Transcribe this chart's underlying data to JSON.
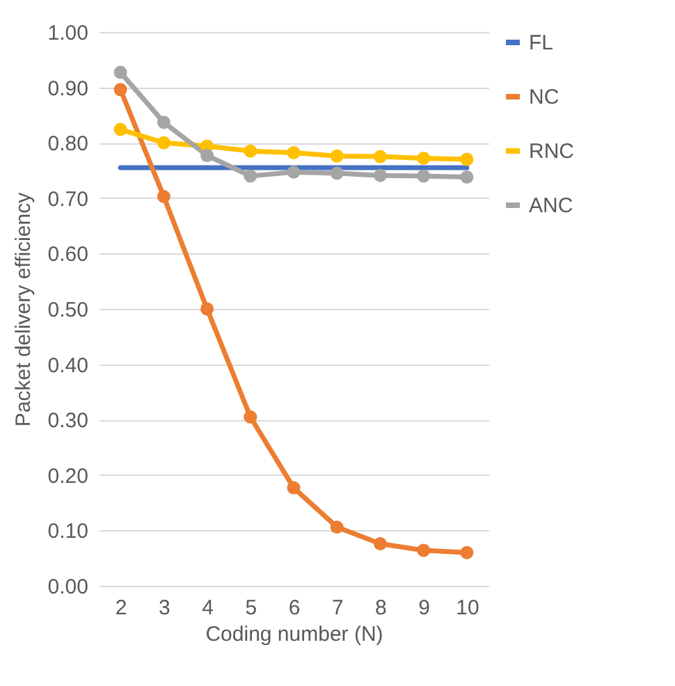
{
  "chart_data": {
    "type": "line",
    "xlabel": "Coding number (N)",
    "ylabel": "Packet delivery efficiency",
    "categories": [
      "2",
      "3",
      "4",
      "5",
      "6",
      "7",
      "8",
      "9",
      "10"
    ],
    "series": [
      {
        "name": "FL",
        "color": "#4472c4",
        "marker": "none",
        "values": [
          0.755,
          0.755,
          0.755,
          0.755,
          0.755,
          0.755,
          0.755,
          0.755,
          0.755
        ]
      },
      {
        "name": "NC",
        "color": "#ed7d31",
        "marker": "circle",
        "values": [
          0.896,
          0.703,
          0.5,
          0.305,
          0.177,
          0.106,
          0.076,
          0.064,
          0.06
        ]
      },
      {
        "name": "RNC",
        "color": "#ffc000",
        "marker": "circle",
        "values": [
          0.824,
          0.8,
          0.794,
          0.785,
          0.782,
          0.776,
          0.775,
          0.772,
          0.77
        ]
      },
      {
        "name": "ANC",
        "color": "#a5a5a5",
        "marker": "circle",
        "values": [
          0.927,
          0.837,
          0.777,
          0.74,
          0.747,
          0.745,
          0.741,
          0.74,
          0.738
        ]
      }
    ],
    "ylim": [
      0,
      1
    ],
    "yticks": [
      {
        "value": 0,
        "label": "0.00"
      },
      {
        "value": 0.1,
        "label": "0.10"
      },
      {
        "value": 0.2,
        "label": "0.20"
      },
      {
        "value": 0.3,
        "label": "0.30"
      },
      {
        "value": 0.4,
        "label": "0.40"
      },
      {
        "value": 0.5,
        "label": "0.50"
      },
      {
        "value": 0.6,
        "label": "0.60"
      },
      {
        "value": 0.7,
        "label": "0.70"
      },
      {
        "value": 0.8,
        "label": "0.80"
      },
      {
        "value": 0.9,
        "label": "0.90"
      },
      {
        "value": 1,
        "label": "1.00"
      }
    ],
    "grid": "y",
    "legend": "right"
  }
}
